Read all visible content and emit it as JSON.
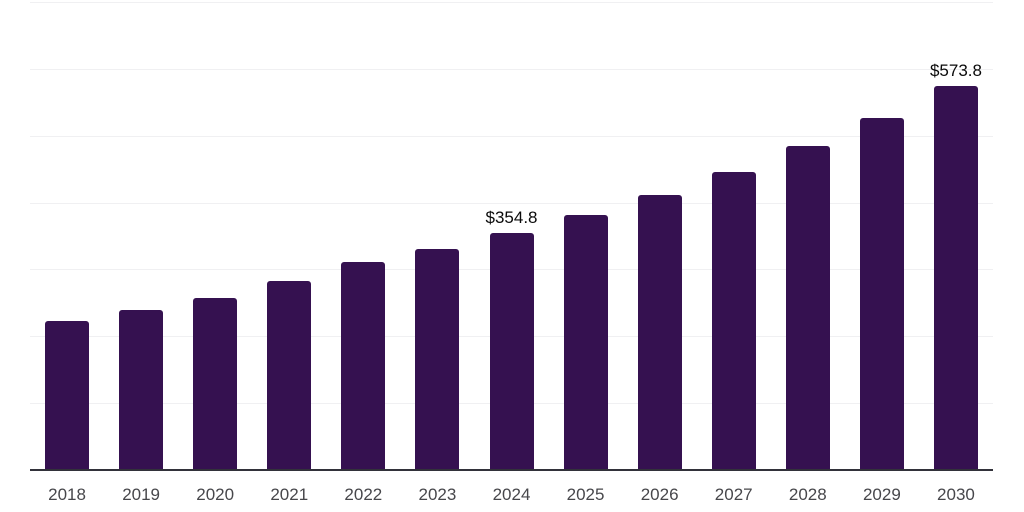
{
  "chart_data": {
    "type": "bar",
    "title": "",
    "xlabel": "",
    "ylabel": "",
    "categories": [
      "2018",
      "2019",
      "2020",
      "2021",
      "2022",
      "2023",
      "2024",
      "2025",
      "2026",
      "2027",
      "2028",
      "2029",
      "2030"
    ],
    "values": [
      223,
      239,
      257,
      283,
      311,
      331,
      354.8,
      382,
      412,
      445,
      484,
      526,
      573.8
    ],
    "labeled_points": [
      {
        "category": "2024",
        "label": "$354.8"
      },
      {
        "category": "2030",
        "label": "$573.8"
      }
    ],
    "unit_prefix": "$",
    "ylim": [
      0,
      700
    ],
    "grid_step": 100,
    "grid": "horizontal",
    "legend_position": "none",
    "y_tick_labels_shown": false,
    "colors": {
      "bar": "#351150",
      "grid": "#f0f0f2",
      "axis": "#32323a",
      "tick_label": "#47474b",
      "data_label": "#0a0a0a",
      "background": "#ffffff"
    }
  }
}
